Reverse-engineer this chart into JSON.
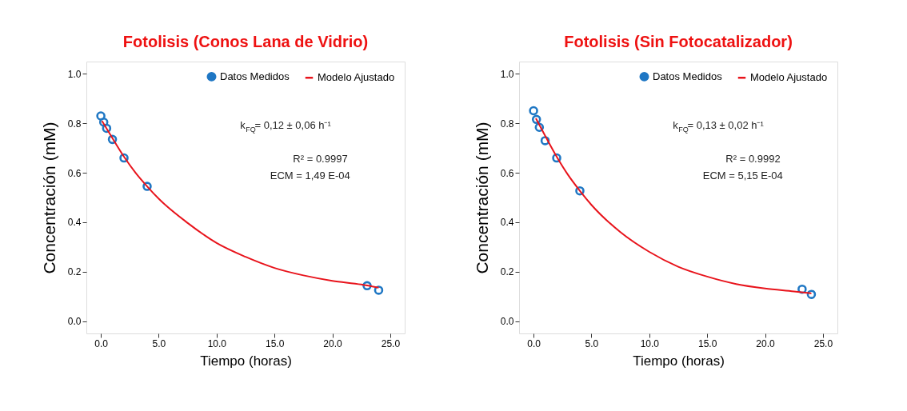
{
  "chart_data": [
    {
      "type": "scatter",
      "title": "Fotolisis (Conos Lana de Vidrio)",
      "xlabel": "Tiempo (horas)",
      "ylabel": "Concentración (mM)",
      "series": [
        {
          "name": "Datos Medidos",
          "type": "scatter",
          "marker": "circle",
          "color": "#1f77c4",
          "x": [
            0,
            0.25,
            0.5,
            1,
            2,
            4,
            23,
            24
          ],
          "values": [
            0.83,
            0.805,
            0.78,
            0.735,
            0.66,
            0.545,
            0.143,
            0.125
          ]
        },
        {
          "name": "Modelo Ajustado",
          "type": "line",
          "marker": "none",
          "color": "#e8141c",
          "x": [
            0.1,
            1,
            2,
            3,
            4,
            5,
            7.5,
            10,
            12.5,
            15,
            17.5,
            20,
            22.5,
            24
          ],
          "values": [
            0.81,
            0.74,
            0.665,
            0.6,
            0.545,
            0.495,
            0.397,
            0.316,
            0.26,
            0.215,
            0.185,
            0.163,
            0.148,
            0.135
          ]
        }
      ],
      "xlim": [
        -1.25,
        26.25
      ],
      "ylim": [
        -0.05,
        1.05
      ],
      "xticks": [
        {
          "value": 0,
          "label": "0.0"
        },
        {
          "value": 5,
          "label": "5.0"
        },
        {
          "value": 10,
          "label": "10.0"
        },
        {
          "value": 15,
          "label": "15.0"
        },
        {
          "value": 20,
          "label": "20.0"
        },
        {
          "value": 25,
          "label": "25.0"
        }
      ],
      "yticks": [
        {
          "value": 0,
          "label": "0.0"
        },
        {
          "value": 0.2,
          "label": "0.2"
        },
        {
          "value": 0.4,
          "label": "0.4"
        },
        {
          "value": 0.6,
          "label": "0.6"
        },
        {
          "value": 0.8,
          "label": "0.8"
        },
        {
          "value": 1,
          "label": "1.0"
        }
      ],
      "legend": "top right",
      "grid": false,
      "annotations": [
        "k$_{FQ}$= 0,12 ± 0,06 h⁻¹",
        "R² = 0.9997",
        "ECM = 1,49 E-04"
      ]
    },
    {
      "type": "scatter",
      "title": "Fotolisis (Sin Fotocatalizador)",
      "xlabel": "Tiempo (horas)",
      "ylabel": "Concentración (mM)",
      "series": [
        {
          "name": "Datos Medidos",
          "type": "scatter",
          "marker": "circle",
          "color": "#1f77c4",
          "x": [
            0,
            0.25,
            0.5,
            1,
            2,
            4,
            23.2,
            24
          ],
          "values": [
            0.851,
            0.816,
            0.784,
            0.73,
            0.66,
            0.527,
            0.129,
            0.108
          ]
        },
        {
          "name": "Modelo Ajustado",
          "type": "line",
          "marker": "none",
          "color": "#e8141c",
          "x": [
            0.2,
            1,
            2,
            3,
            4,
            5,
            7.5,
            10,
            12.5,
            15,
            17.5,
            20,
            22.5,
            24
          ],
          "values": [
            0.82,
            0.75,
            0.665,
            0.59,
            0.527,
            0.47,
            0.36,
            0.28,
            0.22,
            0.18,
            0.15,
            0.132,
            0.12,
            0.112
          ]
        }
      ],
      "xlim": [
        -1.25,
        26.25
      ],
      "ylim": [
        -0.05,
        1.05
      ],
      "xticks": [
        {
          "value": 0,
          "label": "0.0"
        },
        {
          "value": 5,
          "label": "5.0"
        },
        {
          "value": 10,
          "label": "10.0"
        },
        {
          "value": 15,
          "label": "15.0"
        },
        {
          "value": 20,
          "label": "20.0"
        },
        {
          "value": 25,
          "label": "25.0"
        }
      ],
      "yticks": [
        {
          "value": 0,
          "label": "0.0"
        },
        {
          "value": 0.2,
          "label": "0.2"
        },
        {
          "value": 0.4,
          "label": "0.4"
        },
        {
          "value": 0.6,
          "label": "0.6"
        },
        {
          "value": 0.8,
          "label": "0.8"
        },
        {
          "value": 1,
          "label": "1.0"
        }
      ],
      "legend": "top right",
      "grid": false,
      "annotations": [
        "k$_{FQ}$= 0,13 ± 0,02 h⁻¹",
        "R² = 0.9992",
        "ECM = 5,15 E-04"
      ]
    }
  ]
}
